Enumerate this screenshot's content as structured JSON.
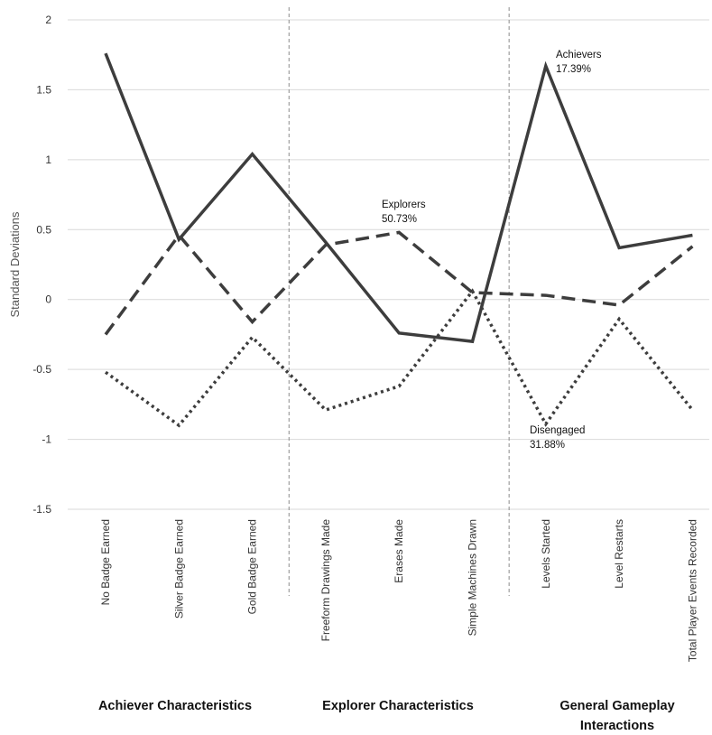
{
  "chart_data": {
    "type": "line",
    "ylabel": "Standard Deviations",
    "xlabel": "",
    "ylim": [
      -1.5,
      2
    ],
    "yticks": [
      2,
      1.5,
      1,
      0.5,
      0,
      -0.5,
      -1,
      -1.5
    ],
    "ytick_labels": [
      "2",
      "1.5",
      "1",
      "0.5",
      "0",
      "-0.5",
      "-1",
      "-1.5"
    ],
    "grid": true,
    "categories": [
      "No Badge Earned",
      "Silver Badge Earned",
      "Gold Badge Earned",
      "Freeform Drawings Made",
      "Erases Made",
      "Simple Machines Drawn",
      "Levels Started",
      "Level Restarts",
      "Total Player Events Recorded"
    ],
    "series": [
      {
        "name": "Achievers",
        "style": "solid",
        "values": [
          1.76,
          0.43,
          1.04,
          0.41,
          -0.24,
          -0.3,
          1.67,
          0.37,
          0.46
        ]
      },
      {
        "name": "Explorers",
        "style": "dashed",
        "values": [
          -0.25,
          0.46,
          -0.16,
          0.39,
          0.48,
          0.05,
          0.03,
          -0.04,
          0.38
        ]
      },
      {
        "name": "Disengaged",
        "style": "dotted",
        "values": [
          -0.52,
          -0.9,
          -0.27,
          -0.79,
          -0.62,
          0.06,
          -0.89,
          -0.14,
          -0.79
        ]
      }
    ],
    "annotations": [
      {
        "series": "Achievers",
        "line1": "Achievers",
        "line2": "17.39%"
      },
      {
        "series": "Explorers",
        "line1": "Explorers",
        "line2": "50.73%"
      },
      {
        "series": "Disengaged",
        "line1": "Disengaged",
        "line2": "31.88%"
      }
    ],
    "groups": [
      {
        "line1": "Achiever Characteristics",
        "line2": ""
      },
      {
        "line1": "Explorer Characteristics",
        "line2": ""
      },
      {
        "line1": "General Gameplay",
        "line2": "Interactions"
      }
    ],
    "colors": {
      "line": "#3d3d3d",
      "grid": "#d9d9d9",
      "divider": "#8c8c8c"
    }
  }
}
